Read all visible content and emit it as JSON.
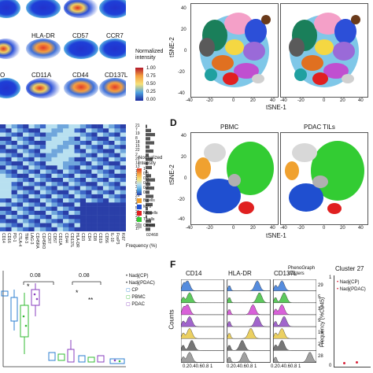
{
  "panel_b": {
    "marker_labels_row2": [
      "HLA-DR",
      "CD57",
      "CCR7"
    ],
    "marker_labels_row3": [
      "O",
      "CD11A",
      "CD44",
      "CD137L"
    ],
    "colorbar_title": "Normalized\nintensity",
    "colorbar_ticks": [
      "1.00",
      "0.75",
      "0.50",
      "0.25",
      "0.00"
    ]
  },
  "panel_c": {
    "y_ticks": [
      "40",
      "20",
      "0",
      "-20",
      "-40"
    ],
    "x_ticks": [
      "-40",
      "-20",
      "0",
      "20",
      "40",
      "-40",
      "-20",
      "0",
      "20",
      "40"
    ],
    "ylabel": "tSNE-2",
    "xlabel": "tSNE-1"
  },
  "panel_d": {
    "letter": "D",
    "titles": [
      "PBMC",
      "PDAC TILs"
    ],
    "y_ticks": [
      "40",
      "20",
      "0",
      "-20",
      "-40"
    ],
    "x_ticks": [
      "-40",
      "-20",
      "0",
      "20",
      "40",
      "-40",
      "-20",
      "0",
      "20",
      "40"
    ],
    "ylabel": "tSNE-2",
    "xlabel": "tSNE-1"
  },
  "heatmap": {
    "columns": [
      "CD14",
      "CD16",
      "PD-1",
      "CTLA-4",
      "TIM-3",
      "LAG-3",
      "CD45RA",
      "CD45RO",
      "CCR7",
      "CD57",
      "CD11A",
      "CD44",
      "CD137L",
      "HLA-DR",
      "CD3",
      "CD4",
      "CD8",
      "CD19",
      "CD56",
      "IL-10",
      "FoxP3",
      "Ki67"
    ],
    "cluster_numbers": [
      "21",
      "7",
      "19",
      "8",
      "18",
      "15",
      "22",
      "2",
      "20",
      "12",
      "13",
      "10",
      "14",
      "1",
      "6",
      "3",
      "11",
      "26",
      "9",
      "4",
      "5",
      "25",
      "23",
      "16",
      "24",
      "17"
    ],
    "legend_title": "Normalized\nintensity",
    "legend_ticks": [
      "1",
      "0.8",
      "0.6",
      "0.4",
      "0.2",
      "0"
    ],
    "cell_types": [
      {
        "label": "B cells",
        "color": "#f0a12f"
      },
      {
        "label": "MPs",
        "color": "#1f4fd0"
      },
      {
        "label": "NK cells",
        "color": "#e02020"
      },
      {
        "label": "T cells",
        "color": "#33cc33"
      },
      {
        "label": "Others",
        "color": "#b0b0b0"
      }
    ],
    "freq_ticks": [
      "0",
      "2",
      "4",
      "6",
      "8"
    ],
    "freq_label": "Frequency (%)"
  },
  "panel_e": {
    "pvals": [
      "0.08",
      "0.08"
    ],
    "stars": [
      "*",
      "*",
      "**"
    ],
    "legend": [
      {
        "label": "Nadj(CP)",
        "marker": "•",
        "color": "#333333"
      },
      {
        "label": "Nadj(PDAC)",
        "marker": "•",
        "color": "#333333"
      },
      {
        "label": "CP",
        "marker": "▢",
        "color": "#2c7fd0"
      },
      {
        "label": "PBMC",
        "marker": "▢",
        "color": "#33bb33"
      },
      {
        "label": "PDAC",
        "marker": "▢",
        "color": "#8a3fbf"
      }
    ]
  },
  "panel_f": {
    "letter": "F",
    "column_titles": [
      "CD14",
      "HLA-DR",
      "CD137L"
    ],
    "clusters_title": "PhenoGraph\nclusters",
    "cluster_ids": [
      "29",
      "5",
      "17",
      "9",
      "16",
      "27",
      "28"
    ],
    "x_ticks": "0.20.40.60.8 1",
    "ylabel": "Counts",
    "colors": [
      "#2a6fd6",
      "#33bb33",
      "#d03ad0",
      "#8a3fbf",
      "#e6c43a",
      "#555555",
      "#888888"
    ]
  },
  "panel_g": {
    "title": "Cluster 27",
    "legend": [
      "Nadj(CP)",
      "Nadj(PDAC)"
    ],
    "ylabel": "Frequency (%CD45)",
    "y_ticks": [
      "0",
      "1"
    ]
  }
}
